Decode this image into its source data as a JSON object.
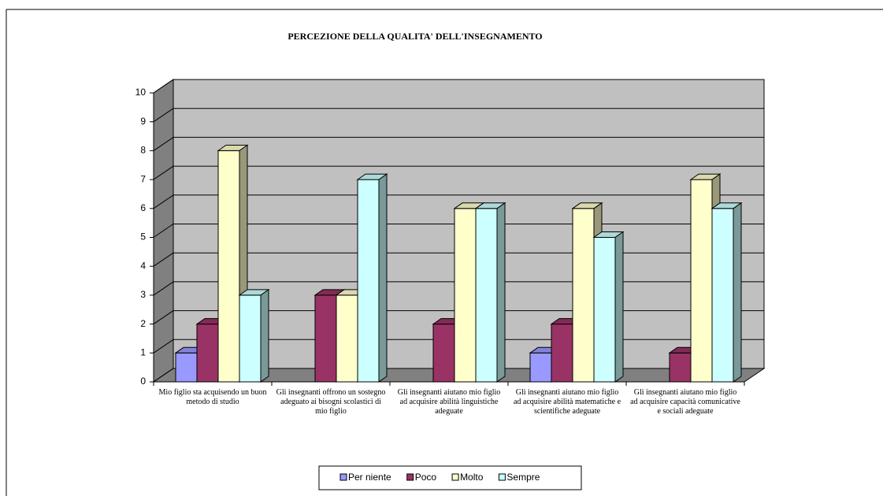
{
  "chart_data": {
    "type": "bar3d",
    "title": "PERCEZIONE DELLA QUALITA' DELL'INSEGNAMENTO",
    "categories": [
      "Mio figlio sta acquisendo un buon metodo di studio",
      "Gli insegnanti offrono un sostegno adeguato ai bisogni scolastici di mio figlio",
      "Gli insegnanti aiutano mio figlio ad acquisire abilità linguistiche adeguate",
      "Gli insegnanti aiutano mio figlio ad acquisire abilità matematiche e scientifiche adeguate",
      "Gli insegnanti aiutano mio figlio ad acquisire capacità comunicative e sociali adeguate"
    ],
    "series": [
      {
        "name": "Per niente",
        "color": "#9999ff",
        "values": [
          1,
          0,
          0,
          1,
          0
        ]
      },
      {
        "name": "Poco",
        "color": "#993366",
        "values": [
          2,
          3,
          2,
          2,
          1
        ]
      },
      {
        "name": "Molto",
        "color": "#ffffcc",
        "values": [
          8,
          3,
          6,
          6,
          7
        ]
      },
      {
        "name": "Sempre",
        "color": "#ccffff",
        "values": [
          3,
          7,
          6,
          5,
          6
        ]
      }
    ],
    "ylim": [
      0,
      10
    ],
    "yticks": [
      0,
      1,
      2,
      3,
      4,
      5,
      6,
      7,
      8,
      9,
      10
    ],
    "grid": true,
    "legend": "bottom"
  }
}
